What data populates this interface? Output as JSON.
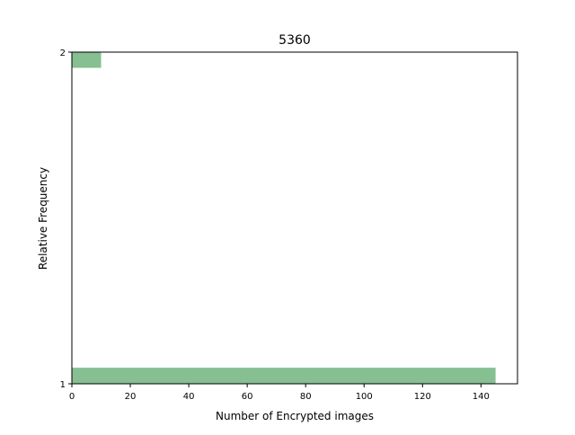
{
  "chart_data": {
    "type": "barh",
    "title": "5360",
    "x_label": "Number of Encrypted images",
    "y_label": "Relative Frequency",
    "y": [
      1.024,
      1.977
    ],
    "values": [
      145,
      10
    ],
    "color": "#86bf91",
    "xlim": [
      0,
      152.5
    ],
    "xticks": [
      0,
      20,
      40,
      60,
      80,
      100,
      120,
      140
    ],
    "ylim": [
      1,
      2
    ],
    "yticks": [
      1,
      2
    ],
    "grid": false
  }
}
